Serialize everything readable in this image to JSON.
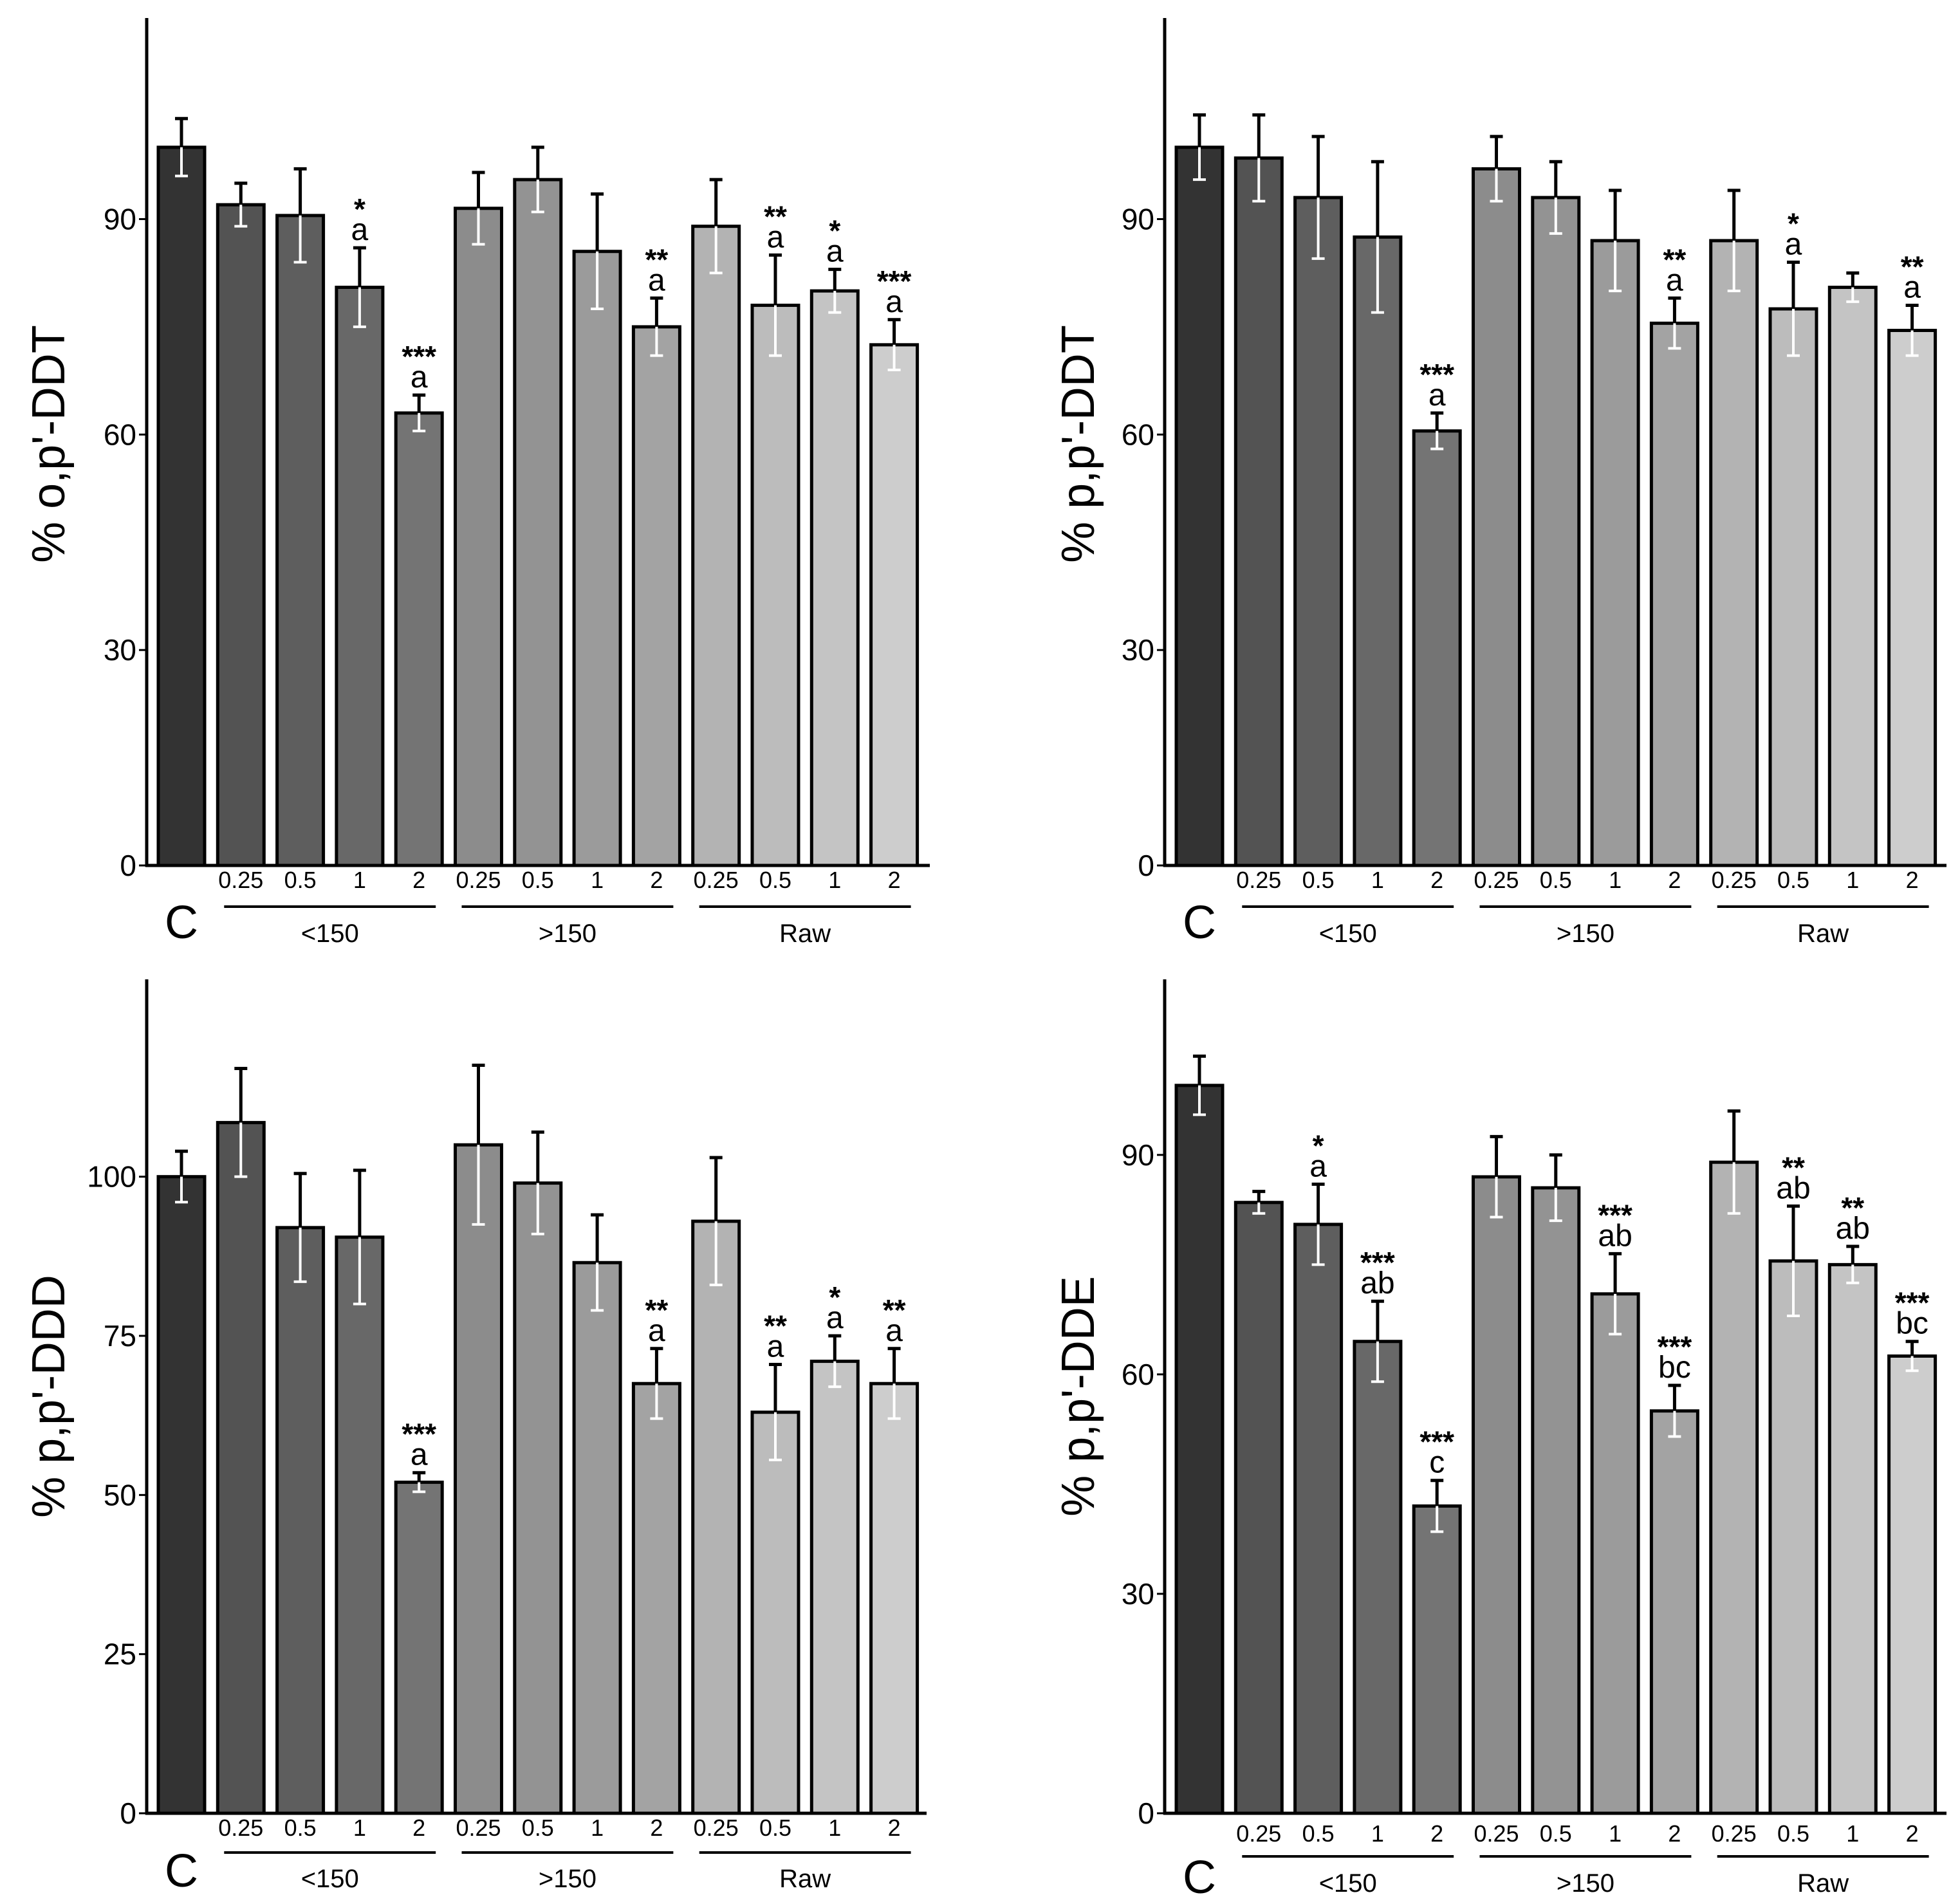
{
  "chart_data": [
    {
      "type": "bar",
      "id": "panel-top-left",
      "ylabel": "% o,p'-DDT",
      "ylim": [
        0,
        118
      ],
      "yticks": [
        0,
        30,
        60,
        90
      ],
      "control_label": "C",
      "group_labels": [
        "<150",
        ">150",
        "Raw"
      ],
      "tick_labels": [
        "0.25",
        "0.5",
        "1",
        "2",
        "0.25",
        "0.5",
        "1",
        "2",
        "0.25",
        "0.5",
        "1",
        "2"
      ],
      "bars": [
        {
          "group": "C",
          "dose": "",
          "value": 100,
          "err": 4,
          "sig": "",
          "letter": "",
          "fill": "#333333"
        },
        {
          "group": "<150",
          "dose": "0.25",
          "value": 92,
          "err": 3,
          "sig": "",
          "letter": "",
          "fill": "#535353"
        },
        {
          "group": "<150",
          "dose": "0.5",
          "value": 90.5,
          "err": 6.5,
          "sig": "",
          "letter": "",
          "fill": "#5e5e5e"
        },
        {
          "group": "<150",
          "dose": "1",
          "value": 80.5,
          "err": 5.5,
          "sig": "*",
          "letter": "a",
          "fill": "#686868"
        },
        {
          "group": "<150",
          "dose": "2",
          "value": 63,
          "err": 2.5,
          "sig": "***",
          "letter": "a",
          "fill": "#747474"
        },
        {
          "group": ">150",
          "dose": "0.25",
          "value": 91.5,
          "err": 5,
          "sig": "",
          "letter": "",
          "fill": "#8c8c8c"
        },
        {
          "group": ">150",
          "dose": "0.5",
          "value": 95.5,
          "err": 4.5,
          "sig": "",
          "letter": "",
          "fill": "#939393"
        },
        {
          "group": ">150",
          "dose": "1",
          "value": 85.5,
          "err": 8,
          "sig": "",
          "letter": "",
          "fill": "#9b9b9b"
        },
        {
          "group": ">150",
          "dose": "2",
          "value": 75,
          "err": 4,
          "sig": "**",
          "letter": "a",
          "fill": "#a3a3a3"
        },
        {
          "group": "Raw",
          "dose": "0.25",
          "value": 89,
          "err": 6.5,
          "sig": "",
          "letter": "",
          "fill": "#b3b3b3"
        },
        {
          "group": "Raw",
          "dose": "0.5",
          "value": 78,
          "err": 7,
          "sig": "**",
          "letter": "a",
          "fill": "#bcbcbc"
        },
        {
          "group": "Raw",
          "dose": "1",
          "value": 80,
          "err": 3,
          "sig": "*",
          "letter": "a",
          "fill": "#c4c4c4"
        },
        {
          "group": "Raw",
          "dose": "2",
          "value": 72.5,
          "err": 3.5,
          "sig": "***",
          "letter": "a",
          "fill": "#cdcdcd"
        }
      ]
    },
    {
      "type": "bar",
      "id": "panel-top-right",
      "ylabel": "% p,p'-DDT",
      "ylim": [
        0,
        118
      ],
      "yticks": [
        0,
        30,
        60,
        90
      ],
      "control_label": "C",
      "group_labels": [
        "<150",
        ">150",
        "Raw"
      ],
      "tick_labels": [
        "0.25",
        "0.5",
        "1",
        "2",
        "0.25",
        "0.5",
        "1",
        "2",
        "0.25",
        "0.5",
        "1",
        "2"
      ],
      "bars": [
        {
          "group": "C",
          "dose": "",
          "value": 100,
          "err": 4.5,
          "sig": "",
          "letter": "",
          "fill": "#333333"
        },
        {
          "group": "<150",
          "dose": "0.25",
          "value": 98.5,
          "err": 6,
          "sig": "",
          "letter": "",
          "fill": "#535353"
        },
        {
          "group": "<150",
          "dose": "0.5",
          "value": 93,
          "err": 8.5,
          "sig": "",
          "letter": "",
          "fill": "#5e5e5e"
        },
        {
          "group": "<150",
          "dose": "1",
          "value": 87.5,
          "err": 10.5,
          "sig": "",
          "letter": "",
          "fill": "#686868"
        },
        {
          "group": "<150",
          "dose": "2",
          "value": 60.5,
          "err": 2.5,
          "sig": "***",
          "letter": "a",
          "fill": "#747474"
        },
        {
          "group": ">150",
          "dose": "0.25",
          "value": 97,
          "err": 4.5,
          "sig": "",
          "letter": "",
          "fill": "#8c8c8c"
        },
        {
          "group": ">150",
          "dose": "0.5",
          "value": 93,
          "err": 5,
          "sig": "",
          "letter": "",
          "fill": "#939393"
        },
        {
          "group": ">150",
          "dose": "1",
          "value": 87,
          "err": 7,
          "sig": "",
          "letter": "",
          "fill": "#9b9b9b"
        },
        {
          "group": ">150",
          "dose": "2",
          "value": 75.5,
          "err": 3.5,
          "sig": "**",
          "letter": "a",
          "fill": "#a3a3a3"
        },
        {
          "group": "Raw",
          "dose": "0.25",
          "value": 87,
          "err": 7,
          "sig": "",
          "letter": "",
          "fill": "#b3b3b3"
        },
        {
          "group": "Raw",
          "dose": "0.5",
          "value": 77.5,
          "err": 6.5,
          "sig": "*",
          "letter": "a",
          "fill": "#bcbcbc"
        },
        {
          "group": "Raw",
          "dose": "1",
          "value": 80.5,
          "err": 2,
          "sig": "",
          "letter": "",
          "fill": "#c4c4c4"
        },
        {
          "group": "Raw",
          "dose": "2",
          "value": 74.5,
          "err": 3.5,
          "sig": "**",
          "letter": "a",
          "fill": "#cdcdcd"
        }
      ]
    },
    {
      "type": "bar",
      "id": "panel-bottom-left",
      "ylabel": "% p,p'-DDD",
      "ylim": [
        0,
        131
      ],
      "yticks": [
        0,
        25,
        50,
        75,
        100
      ],
      "control_label": "C",
      "group_labels": [
        "<150",
        ">150",
        "Raw"
      ],
      "tick_labels": [
        "0.25",
        "0.5",
        "1",
        "2",
        "0.25",
        "0.5",
        "1",
        "2",
        "0.25",
        "0.5",
        "1",
        "2"
      ],
      "bars": [
        {
          "group": "C",
          "dose": "",
          "value": 100,
          "err": 4,
          "sig": "",
          "letter": "",
          "fill": "#333333"
        },
        {
          "group": "<150",
          "dose": "0.25",
          "value": 108.5,
          "err": 8.5,
          "sig": "",
          "letter": "",
          "fill": "#535353"
        },
        {
          "group": "<150",
          "dose": "0.5",
          "value": 92,
          "err": 8.5,
          "sig": "",
          "letter": "",
          "fill": "#5e5e5e"
        },
        {
          "group": "<150",
          "dose": "1",
          "value": 90.5,
          "err": 10.5,
          "sig": "",
          "letter": "",
          "fill": "#686868"
        },
        {
          "group": "<150",
          "dose": "2",
          "value": 52,
          "err": 1.5,
          "sig": "***",
          "letter": "a",
          "fill": "#747474"
        },
        {
          "group": ">150",
          "dose": "0.25",
          "value": 105,
          "err": 12.5,
          "sig": "",
          "letter": "",
          "fill": "#8c8c8c"
        },
        {
          "group": ">150",
          "dose": "0.5",
          "value": 99,
          "err": 8,
          "sig": "",
          "letter": "",
          "fill": "#939393"
        },
        {
          "group": ">150",
          "dose": "1",
          "value": 86.5,
          "err": 7.5,
          "sig": "",
          "letter": "",
          "fill": "#9b9b9b"
        },
        {
          "group": ">150",
          "dose": "2",
          "value": 67.5,
          "err": 5.5,
          "sig": "**",
          "letter": "a",
          "fill": "#a3a3a3"
        },
        {
          "group": "Raw",
          "dose": "0.25",
          "value": 93,
          "err": 10,
          "sig": "",
          "letter": "",
          "fill": "#b3b3b3"
        },
        {
          "group": "Raw",
          "dose": "0.5",
          "value": 63,
          "err": 7.5,
          "sig": "**",
          "letter": "a",
          "fill": "#bcbcbc"
        },
        {
          "group": "Raw",
          "dose": "1",
          "value": 71,
          "err": 4,
          "sig": "*",
          "letter": "a",
          "fill": "#c4c4c4"
        },
        {
          "group": "Raw",
          "dose": "2",
          "value": 67.5,
          "err": 5.5,
          "sig": "**",
          "letter": "a",
          "fill": "#cdcdcd"
        }
      ]
    },
    {
      "type": "bar",
      "id": "panel-bottom-right",
      "ylabel": "% p,p'-DDE",
      "ylim": [
        0,
        114
      ],
      "yticks": [
        0,
        30,
        60,
        90
      ],
      "control_label": "C",
      "group_labels": [
        "<150",
        ">150",
        "Raw"
      ],
      "tick_labels": [
        "0.25",
        "0.5",
        "1",
        "2",
        "0.25",
        "0.5",
        "1",
        "2",
        "0.25",
        "0.5",
        "1",
        "2"
      ],
      "bars": [
        {
          "group": "C",
          "dose": "",
          "value": 99.5,
          "err": 4,
          "sig": "",
          "letter": "",
          "fill": "#333333"
        },
        {
          "group": "<150",
          "dose": "0.25",
          "value": 83.5,
          "err": 1.5,
          "sig": "",
          "letter": "",
          "fill": "#535353"
        },
        {
          "group": "<150",
          "dose": "0.5",
          "value": 80.5,
          "err": 5.5,
          "sig": "*",
          "letter": "a",
          "fill": "#5e5e5e"
        },
        {
          "group": "<150",
          "dose": "1",
          "value": 64.5,
          "err": 5.5,
          "sig": "***",
          "letter": "ab",
          "fill": "#686868"
        },
        {
          "group": "<150",
          "dose": "2",
          "value": 42,
          "err": 3.5,
          "sig": "***",
          "letter": "c",
          "fill": "#747474"
        },
        {
          "group": ">150",
          "dose": "0.25",
          "value": 87,
          "err": 5.5,
          "sig": "",
          "letter": "",
          "fill": "#8c8c8c"
        },
        {
          "group": ">150",
          "dose": "0.5",
          "value": 85.5,
          "err": 4.5,
          "sig": "",
          "letter": "",
          "fill": "#939393"
        },
        {
          "group": ">150",
          "dose": "1",
          "value": 71,
          "err": 5.5,
          "sig": "***",
          "letter": "ab",
          "fill": "#9b9b9b"
        },
        {
          "group": ">150",
          "dose": "2",
          "value": 55,
          "err": 3.5,
          "sig": "***",
          "letter": "bc",
          "fill": "#a3a3a3"
        },
        {
          "group": "Raw",
          "dose": "0.25",
          "value": 89,
          "err": 7,
          "sig": "",
          "letter": "",
          "fill": "#b3b3b3"
        },
        {
          "group": "Raw",
          "dose": "0.5",
          "value": 75.5,
          "err": 7.5,
          "sig": "**",
          "letter": "ab",
          "fill": "#bcbcbc"
        },
        {
          "group": "Raw",
          "dose": "1",
          "value": 75,
          "err": 2.5,
          "sig": "**",
          "letter": "ab",
          "fill": "#c4c4c4"
        },
        {
          "group": "Raw",
          "dose": "2",
          "value": 62.5,
          "err": 2,
          "sig": "***",
          "letter": "bc",
          "fill": "#cdcdcd"
        }
      ]
    }
  ]
}
